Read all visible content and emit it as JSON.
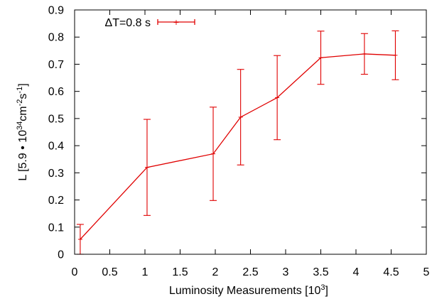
{
  "chart_data": {
    "type": "line",
    "title": "",
    "xlabel": "Luminosity Measurements [10",
    "xlabel_exp": "3",
    "xlabel_end": "]",
    "ylabel_parts": {
      "prefix": "L [5.9 • 10",
      "exp1": "34",
      "mid": "cm",
      "exp2": "-2",
      "mid2": "s",
      "exp3": "-1",
      "suffix": "]"
    },
    "xlim": [
      0,
      5
    ],
    "ylim": [
      0,
      0.9
    ],
    "xticks": [
      "0",
      "0.5",
      "1",
      "1.5",
      "2",
      "2.5",
      "3",
      "3.5",
      "4",
      "4.5",
      "5"
    ],
    "yticks": [
      "0",
      "0.1",
      "0.2",
      "0.3",
      "0.4",
      "0.5",
      "0.6",
      "0.7",
      "0.8",
      "0.9"
    ],
    "legend_position": "top-left",
    "grid": false,
    "series": [
      {
        "name": "ΔT=0.8 s",
        "color": "#e00000",
        "x": [
          0.08,
          1.03,
          1.97,
          2.36,
          2.88,
          3.5,
          4.12,
          4.56
        ],
        "y": [
          0.055,
          0.32,
          0.37,
          0.505,
          0.577,
          0.724,
          0.738,
          0.733
        ],
        "err": [
          0.055,
          0.177,
          0.172,
          0.176,
          0.155,
          0.098,
          0.075,
          0.09
        ]
      }
    ]
  }
}
